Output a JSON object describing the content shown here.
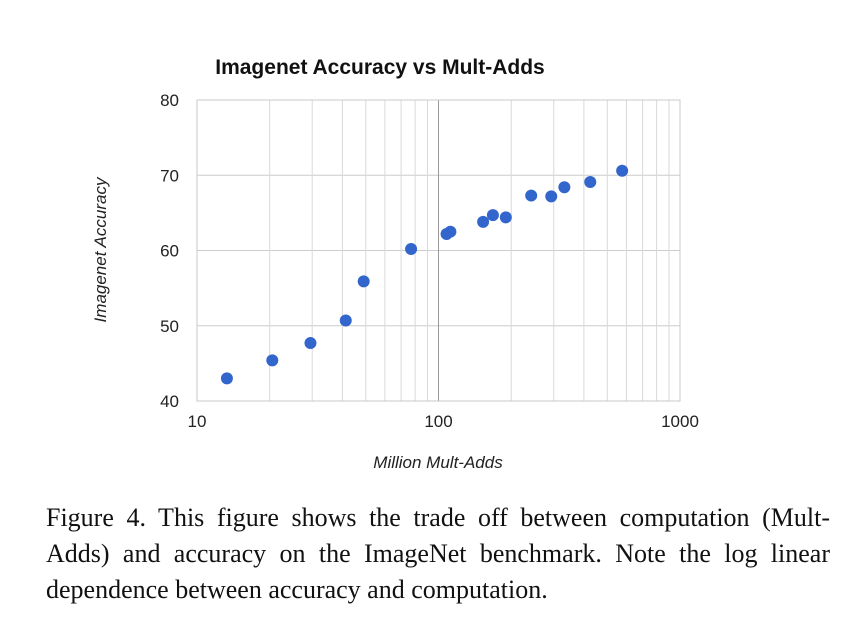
{
  "chart_data": {
    "type": "scatter",
    "title": "Imagenet Accuracy vs Mult-Adds",
    "xlabel": "Million Mult-Adds",
    "ylabel": "Imagenet Accuracy",
    "xscale": "log",
    "xlim": [
      10,
      1000
    ],
    "ylim": [
      40,
      80
    ],
    "xticks": [
      10,
      100,
      1000
    ],
    "yticks": [
      40,
      50,
      60,
      70,
      80
    ],
    "xtick_labels": [
      "10",
      "100",
      "1000"
    ],
    "ytick_labels": [
      "40",
      "50",
      "60",
      "70",
      "80"
    ],
    "grid": true,
    "legend": "none",
    "marker_color": "#3366cc",
    "points": [
      {
        "x": 13.3,
        "y": 43.0
      },
      {
        "x": 20.5,
        "y": 45.4
      },
      {
        "x": 29.5,
        "y": 47.7
      },
      {
        "x": 41.3,
        "y": 50.7
      },
      {
        "x": 49.0,
        "y": 55.9
      },
      {
        "x": 77.0,
        "y": 60.2
      },
      {
        "x": 108,
        "y": 62.2
      },
      {
        "x": 112,
        "y": 62.5
      },
      {
        "x": 153,
        "y": 63.8
      },
      {
        "x": 168,
        "y": 64.7
      },
      {
        "x": 190,
        "y": 64.4
      },
      {
        "x": 242,
        "y": 67.3
      },
      {
        "x": 293,
        "y": 67.2
      },
      {
        "x": 332,
        "y": 68.4
      },
      {
        "x": 425,
        "y": 69.1
      },
      {
        "x": 576,
        "y": 70.6
      }
    ]
  },
  "caption": "Figure 4. This figure shows the trade off between computation (Mult-Adds) and accuracy on the ImageNet benchmark. Note the log linear dependence between accuracy and computation."
}
